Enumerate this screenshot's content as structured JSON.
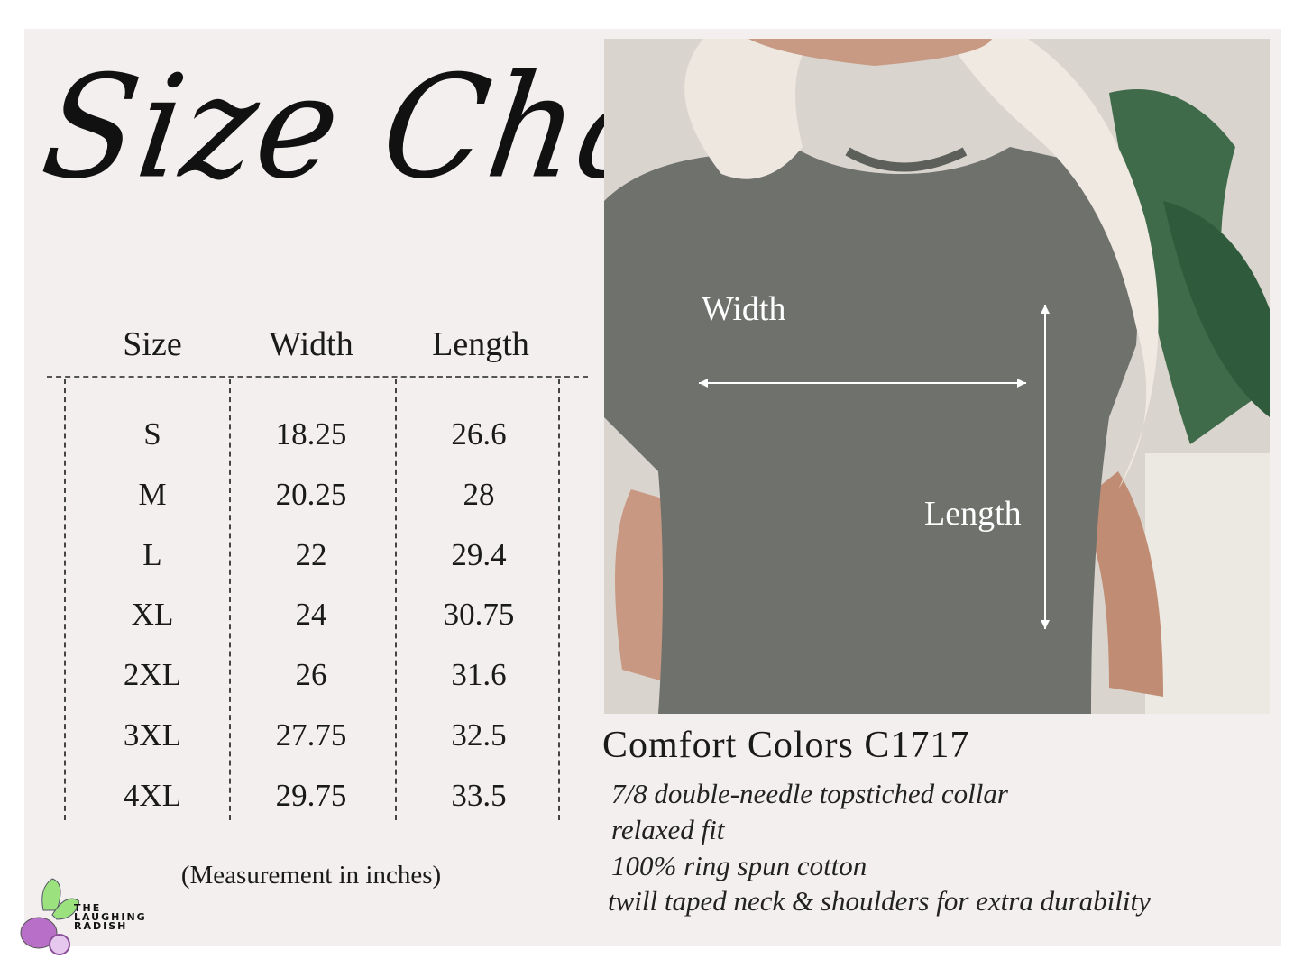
{
  "title": "Size Chart",
  "table": {
    "headers": [
      "Size",
      "Width",
      "Length"
    ],
    "rows": [
      [
        "S",
        "18.25",
        "26.6"
      ],
      [
        "M",
        "20.25",
        "28"
      ],
      [
        "L",
        "22",
        "29.4"
      ],
      [
        "XL",
        "24",
        "30.75"
      ],
      [
        "2XL",
        "26",
        "31.6"
      ],
      [
        "3XL",
        "27.75",
        "32.5"
      ],
      [
        "4XL",
        "29.75",
        "33.5"
      ]
    ],
    "note": "(Measurement in inches)"
  },
  "photo": {
    "width_label": "Width",
    "length_label": "Length"
  },
  "product": {
    "name": "Comfort Colors C1717",
    "features": [
      "7/8 double-needle topstiched collar",
      "relaxed fit",
      "100% ring spun cotton",
      "twill taped neck & shoulders for extra durability"
    ]
  },
  "logo": {
    "lines": [
      "THE",
      "LAUGHING",
      "RADISH"
    ]
  },
  "colors": {
    "background": "#f3efef",
    "shirt": "#6f716c",
    "logo_radish": "#b86fc7",
    "logo_leaf": "#9be27f"
  }
}
